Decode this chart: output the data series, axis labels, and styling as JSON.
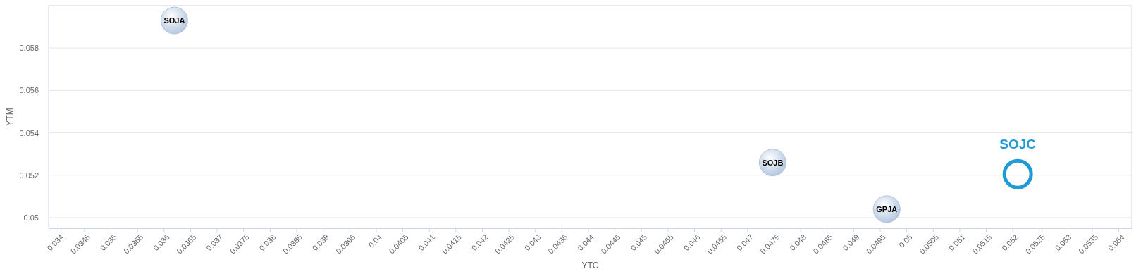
{
  "chart_data": {
    "type": "scatter",
    "xlabel": "YTC",
    "ylabel": "YTM",
    "x": [
      0.0362,
      0.04748,
      0.04963
    ],
    "values": [
      0.0593,
      0.0526,
      0.0504
    ],
    "value_labels": [
      "SOJA",
      "SOJB",
      "GPJA"
    ],
    "color": "#b0c4de",
    "marker": "circle",
    "xlim": [
      0.03383,
      0.05425
    ],
    "ylim": [
      0.0495,
      0.06
    ],
    "xticks": [
      0.034,
      0.0345,
      0.035,
      0.0355,
      0.036,
      0.0365,
      0.037,
      0.0375,
      0.038,
      0.0385,
      0.039,
      0.0395,
      0.04,
      0.0405,
      0.041,
      0.0415,
      0.042,
      0.0425,
      0.043,
      0.0435,
      0.044,
      0.0445,
      0.045,
      0.0455,
      0.046,
      0.0465,
      0.047,
      0.0475,
      0.048,
      0.0485,
      0.049,
      0.0495,
      0.05,
      0.0505,
      0.051,
      0.0515,
      0.052,
      0.0525,
      0.053,
      0.0535,
      0.054
    ],
    "yticks": [
      0.05,
      0.052,
      0.054,
      0.056,
      0.058
    ],
    "grid": "y",
    "annotations": [
      {
        "text": "SOJC",
        "x": 0.0521,
        "y": 0.05205
      }
    ]
  }
}
